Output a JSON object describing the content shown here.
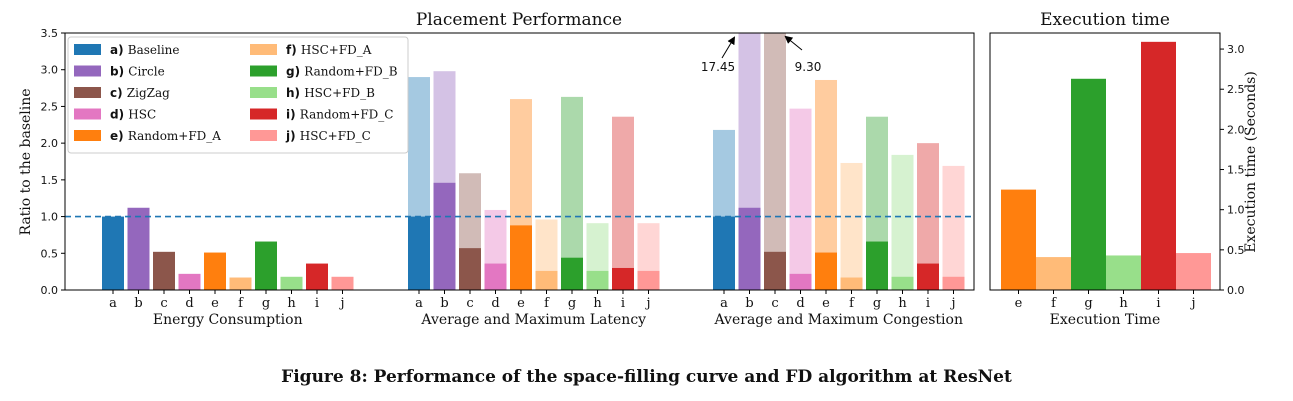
{
  "caption": "Figure 8: Performance of the space-filling curve and FD algorithm at ResNet",
  "colors": {
    "a": "#1f77b4",
    "b": "#9467bd",
    "c": "#8c564b",
    "d": "#e377c2",
    "e": "#ff7f0e",
    "f": "#ffbb78",
    "g": "#2ca02c",
    "h": "#98df8a",
    "i": "#d62728",
    "j": "#ff9896",
    "baseline_line": "#1f77b4"
  },
  "chart_data": [
    {
      "type": "bar",
      "title": "Placement Performance",
      "ylabel": "Ratio to the baseline",
      "ylim": [
        0,
        3.5
      ],
      "yticks": [
        "0.0",
        "0.5",
        "1.0",
        "1.5",
        "2.0",
        "2.5",
        "3.0",
        "3.5"
      ],
      "yticks_values": [
        0,
        0.5,
        1.0,
        1.5,
        2.0,
        2.5,
        3.0,
        3.5
      ],
      "baseline": 1.0,
      "legend_position": "top-left",
      "legend": [
        {
          "key": "a",
          "letter": "a)",
          "name": "Baseline"
        },
        {
          "key": "b",
          "letter": "b)",
          "name": "Circle"
        },
        {
          "key": "c",
          "letter": "c)",
          "name": "ZigZag"
        },
        {
          "key": "d",
          "letter": "d)",
          "name": "HSC"
        },
        {
          "key": "e",
          "letter": "e)",
          "name": "Random+FD_A"
        },
        {
          "key": "f",
          "letter": "f)",
          "name": "HSC+FD_A"
        },
        {
          "key": "g",
          "letter": "g)",
          "name": "Random+FD_B"
        },
        {
          "key": "h",
          "letter": "h)",
          "name": "HSC+FD_B"
        },
        {
          "key": "i",
          "letter": "i)",
          "name": "Random+FD_C"
        },
        {
          "key": "j",
          "letter": "j)",
          "name": "HSC+FD_C"
        }
      ],
      "groups": [
        {
          "label": "Energy Consumption",
          "categories": [
            "a",
            "b",
            "c",
            "d",
            "e",
            "f",
            "g",
            "h",
            "i",
            "j"
          ],
          "values": [
            1.0,
            1.12,
            0.52,
            0.22,
            0.51,
            0.17,
            0.66,
            0.18,
            0.36,
            0.18
          ]
        },
        {
          "label": "Average and Maximum Latency",
          "categories": [
            "a",
            "b",
            "c",
            "d",
            "e",
            "f",
            "g",
            "h",
            "i",
            "j"
          ],
          "average": [
            1.0,
            1.46,
            0.57,
            0.36,
            0.88,
            0.26,
            0.44,
            0.26,
            0.3,
            0.26
          ],
          "maximum": [
            2.9,
            2.98,
            1.59,
            1.09,
            2.6,
            0.96,
            2.63,
            0.91,
            2.36,
            0.91
          ]
        },
        {
          "label": "Average and Maximum Congestion",
          "categories": [
            "a",
            "b",
            "c",
            "d",
            "e",
            "f",
            "g",
            "h",
            "i",
            "j"
          ],
          "average": [
            1.0,
            1.12,
            0.52,
            0.22,
            0.51,
            0.17,
            0.66,
            0.18,
            0.36,
            0.18
          ],
          "maximum": [
            2.18,
            17.45,
            9.3,
            2.47,
            2.86,
            1.73,
            2.36,
            1.84,
            2.0,
            1.69
          ]
        }
      ],
      "annotations": [
        {
          "text": "17.45",
          "category": "b",
          "group": 2
        },
        {
          "text": "9.30",
          "category": "c",
          "group": 2
        }
      ]
    },
    {
      "type": "bar",
      "title": "Execution time",
      "xlabel": "Execution Time",
      "ylabel": "Execution time (Seconds)",
      "ylim": [
        0,
        3.2
      ],
      "yticks": [
        "0.0",
        "0.5",
        "1.0",
        "1.5",
        "2.0",
        "2.5",
        "3.0"
      ],
      "yticks_values": [
        0,
        0.5,
        1.0,
        1.5,
        2.0,
        2.5,
        3.0
      ],
      "categories": [
        "e",
        "f",
        "g",
        "h",
        "i",
        "j"
      ],
      "values": [
        1.25,
        0.41,
        2.63,
        0.43,
        3.09,
        0.46
      ]
    }
  ]
}
